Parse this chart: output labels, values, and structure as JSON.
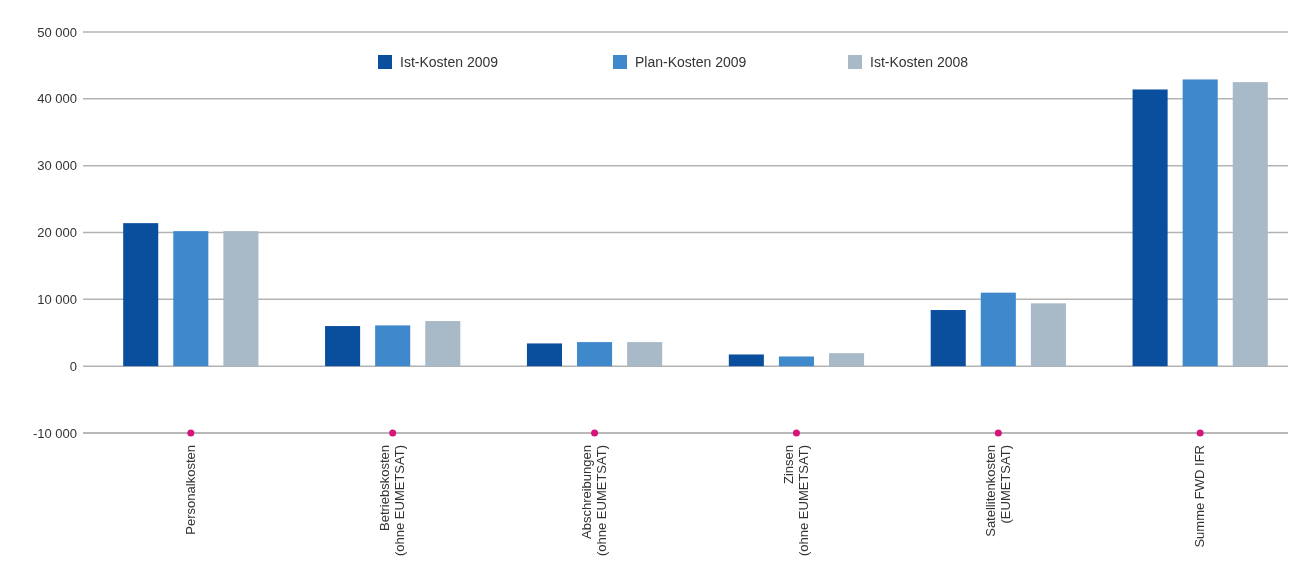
{
  "chart_data": {
    "type": "bar",
    "categories": [
      "Personalkosten",
      "Betriebskosten\n(ohne EUMETSAT)",
      "Abschreibungen\n(ohne EUMETSAT)",
      "Zinsen\n(ohne EUMETSAT)",
      "Satellitenkosten\n(EUMETSAT)",
      "Summe FWD IFR"
    ],
    "series": [
      {
        "name": "Ist-Kosten 2009",
        "color": "#0a4f9e",
        "values": [
          21400,
          6000,
          3400,
          1750,
          8400,
          41400
        ]
      },
      {
        "name": "Plan-Kosten 2009",
        "color": "#3f88cc",
        "values": [
          20200,
          6100,
          3600,
          1450,
          11000,
          42900
        ]
      },
      {
        "name": "Ist-Kosten 2008",
        "color": "#a8b9c7",
        "values": [
          20200,
          6750,
          3600,
          1950,
          9400,
          42500
        ]
      }
    ],
    "ylim": [
      -10000,
      50000
    ],
    "yticks": [
      {
        "value": -10000,
        "label": "-10 000"
      },
      {
        "value": 0,
        "label": "0"
      },
      {
        "value": 10000,
        "label": "10 000"
      },
      {
        "value": 20000,
        "label": "20 000"
      },
      {
        "value": 30000,
        "label": "30 000"
      },
      {
        "value": 40000,
        "label": "40 000"
      },
      {
        "value": 50000,
        "label": "50 000"
      }
    ],
    "grid": "y",
    "legend": "top"
  }
}
